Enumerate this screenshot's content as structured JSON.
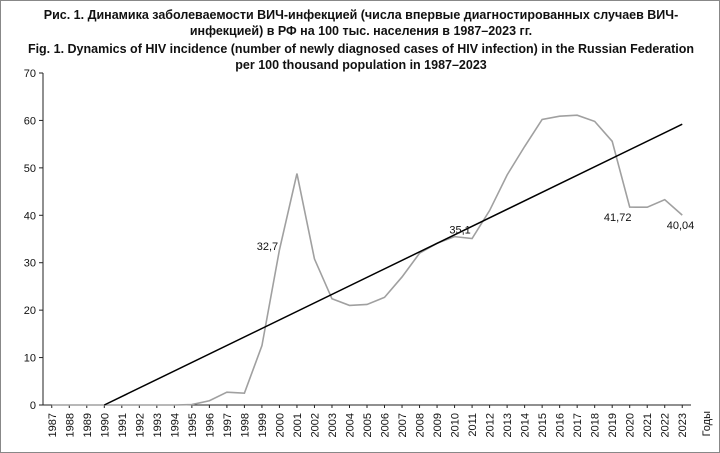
{
  "chart_data": {
    "type": "line",
    "title": "Рис. 1. Динамика заболеваемости ВИЧ-инфекцией (числа впервые диагностированных случаев ВИЧ-инфекцией) в РФ на 100 тыс. населения в 1987–2023 гг.",
    "subtitle": "Fig. 1. Dynamics of HIV incidence (number of newly diagnosed cases of HIV infection) in the Russian Federation per 100 thousand population in 1987–2023",
    "x_label": "Годы",
    "categories": [
      "1987",
      "1988",
      "1989",
      "1990",
      "1991",
      "1992",
      "1993",
      "1994",
      "1995",
      "1996",
      "1997",
      "1998",
      "1999",
      "2000",
      "2001",
      "2002",
      "2003",
      "2004",
      "2005",
      "2006",
      "2007",
      "2008",
      "2009",
      "2010",
      "2011",
      "2012",
      "2013",
      "2014",
      "2015",
      "2016",
      "2017",
      "2018",
      "2019",
      "2020",
      "2021",
      "2022",
      "2023"
    ],
    "values": [
      0,
      0,
      0,
      0,
      0,
      0,
      0,
      0,
      0.1,
      0.9,
      2.7,
      2.5,
      12.5,
      32.7,
      48.8,
      30.8,
      22.4,
      21.0,
      21.2,
      22.7,
      27.0,
      32.0,
      34.1,
      35.5,
      35.1,
      41.0,
      48.5,
      54.5,
      60.2,
      60.9,
      61.1,
      59.8,
      55.6,
      41.72,
      41.7,
      43.3,
      40.04
    ],
    "value_labels": [
      null,
      null,
      null,
      null,
      null,
      null,
      null,
      null,
      null,
      null,
      null,
      null,
      null,
      "32,7",
      null,
      null,
      null,
      null,
      null,
      null,
      null,
      null,
      null,
      null,
      "35,1",
      null,
      null,
      null,
      null,
      null,
      null,
      null,
      null,
      "41,72",
      null,
      null,
      "40,04"
    ],
    "color": "#a0a0a0",
    "trend": {
      "color": "#000000",
      "from": "1990",
      "to": "2023",
      "values": [
        0,
        59.2
      ]
    },
    "ylim": [
      0,
      70
    ],
    "yticks": [
      0,
      10,
      20,
      30,
      40,
      50,
      60,
      70
    ]
  }
}
